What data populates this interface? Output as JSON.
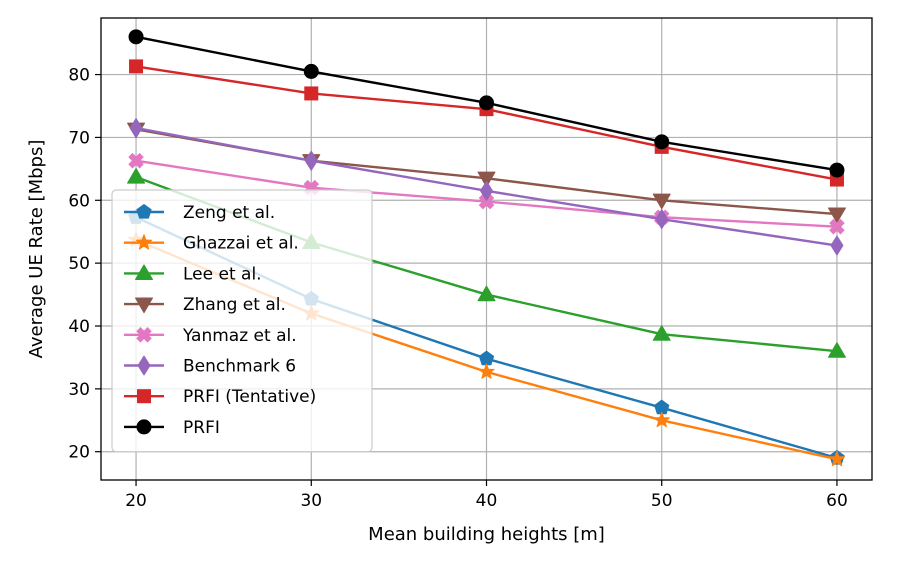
{
  "chart_data": {
    "type": "line",
    "title": "",
    "xlabel": "Mean building heights [m]",
    "ylabel": "Average UE Rate [Mbps]",
    "x": [
      20,
      30,
      40,
      50,
      60
    ],
    "xlim": [
      18,
      62
    ],
    "ylim": [
      15.5,
      89
    ],
    "xticks": [
      20,
      30,
      40,
      50,
      60
    ],
    "yticks": [
      20,
      30,
      40,
      50,
      60,
      70,
      80
    ],
    "grid": true,
    "legend_position": "lower-left",
    "series": [
      {
        "name": "Zeng et al.",
        "color": "#1f77b4",
        "marker": "pentagon",
        "values": [
          57.3,
          44.3,
          34.8,
          27.0,
          19.0
        ]
      },
      {
        "name": "Ghazzai et al.",
        "color": "#ff7f0e",
        "marker": "star",
        "values": [
          53.7,
          42.0,
          32.7,
          25.0,
          18.8
        ]
      },
      {
        "name": "Lee et al.",
        "color": "#2ca02c",
        "marker": "triangle-up",
        "values": [
          63.7,
          53.3,
          45.0,
          38.7,
          36.0
        ]
      },
      {
        "name": "Zhang et al.",
        "color": "#8c564b",
        "marker": "triangle-down",
        "values": [
          71.3,
          66.3,
          63.5,
          60.0,
          57.8
        ]
      },
      {
        "name": "Yanmaz et al.",
        "color": "#e377c2",
        "marker": "x-filled",
        "values": [
          66.3,
          62.0,
          59.8,
          57.3,
          55.8
        ]
      },
      {
        "name": "Benchmark 6",
        "color": "#9467bd",
        "marker": "diamond",
        "values": [
          71.5,
          66.3,
          61.5,
          57.0,
          52.8
        ]
      },
      {
        "name": "PRFI (Tentative)",
        "color": "#d62728",
        "marker": "square",
        "values": [
          81.3,
          77.0,
          74.5,
          68.5,
          63.3
        ]
      },
      {
        "name": "PRFI",
        "color": "#000000",
        "marker": "circle",
        "values": [
          86.0,
          80.5,
          75.5,
          69.3,
          64.8
        ]
      }
    ]
  }
}
